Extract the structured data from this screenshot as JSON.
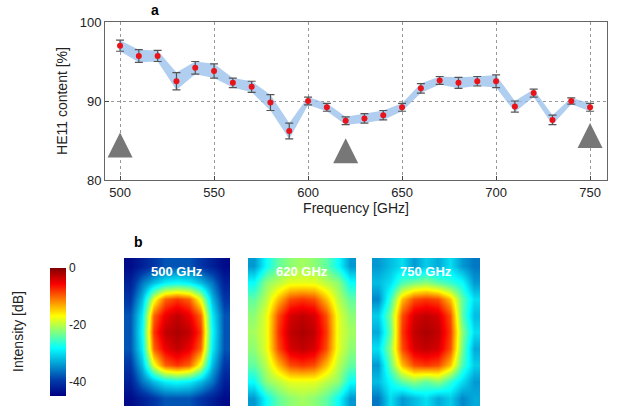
{
  "chart_data": [
    {
      "panel": "a",
      "type": "scatter",
      "x": [
        500,
        510,
        520,
        530,
        540,
        550,
        560,
        570,
        580,
        590,
        600,
        610,
        620,
        630,
        640,
        650,
        660,
        670,
        680,
        690,
        700,
        710,
        720,
        730,
        740,
        750
      ],
      "values": [
        97,
        95.7,
        95.7,
        92.5,
        94.2,
        93.8,
        92.3,
        91.8,
        89.8,
        86.2,
        90,
        89.2,
        87.5,
        87.8,
        88.2,
        89.2,
        91.6,
        92.6,
        92.3,
        92.5,
        92.5,
        89.3,
        91,
        87.6,
        90,
        89.2
      ],
      "errors": [
        0.7,
        0.8,
        0.7,
        1.1,
        0.8,
        0.9,
        0.6,
        0.7,
        1.0,
        1.0,
        0.5,
        0.5,
        0.5,
        0.6,
        0.6,
        0.5,
        0.6,
        0.5,
        0.7,
        0.6,
        0.8,
        0.7,
        0.5,
        0.6,
        0.4,
        0.5
      ],
      "xlabel": "Frequency [GHz]",
      "ylabel": "HE11 content [%]",
      "xlim": [
        492,
        759
      ],
      "ylim": [
        80,
        100
      ],
      "xticks": [
        500,
        550,
        600,
        650,
        700,
        750
      ],
      "yticks": [
        80,
        90,
        100
      ],
      "grid": true,
      "color": "#e8141a",
      "marker": "circle",
      "arrows": [
        {
          "x": 500,
          "y": 86
        },
        {
          "x": 620,
          "y": 85.3
        },
        {
          "x": 750,
          "y": 87.2
        }
      ]
    },
    {
      "panel": "b",
      "type": "heatmap",
      "tick_labels": false,
      "colorbar": {
        "title": "Intensity [dB]",
        "range": [
          -45,
          0
        ],
        "ticks": [
          0,
          -20,
          -40
        ]
      },
      "panels": [
        {
          "title": "500 GHz",
          "cells": [
            [
              -44,
              -42,
              -40,
              -38,
              -38,
              -38,
              -40,
              -42,
              -44
            ],
            [
              -42,
              -36,
              -32,
              -29,
              -28,
              -29,
              -32,
              -36,
              -42
            ],
            [
              -40,
              -32,
              -18,
              -10,
              -8,
              -10,
              -18,
              -32,
              -40
            ],
            [
              -38,
              -29,
              -10,
              -5,
              -3,
              -5,
              -10,
              -29,
              -38
            ],
            [
              -38,
              -28,
              -8,
              -3,
              -2,
              -3,
              -8,
              -28,
              -38
            ],
            [
              -38,
              -29,
              -10,
              -5,
              -3,
              -5,
              -10,
              -29,
              -38
            ],
            [
              -40,
              -32,
              -18,
              -10,
              -8,
              -10,
              -18,
              -32,
              -40
            ],
            [
              -42,
              -36,
              -32,
              -29,
              -28,
              -29,
              -32,
              -36,
              -42
            ],
            [
              -44,
              -42,
              -40,
              -38,
              -38,
              -38,
              -40,
              -42,
              -44
            ]
          ]
        },
        {
          "title": "620 GHz",
          "cells": [
            [
              -34,
              -28,
              -24,
              -22,
              -21,
              -22,
              -24,
              -28,
              -34
            ],
            [
              -28,
              -22,
              -20,
              -18,
              -18,
              -18,
              -20,
              -22,
              -28
            ],
            [
              -24,
              -20,
              -14,
              -9,
              -8,
              -9,
              -14,
              -20,
              -24
            ],
            [
              -22,
              -18,
              -9,
              -4,
              -3,
              -4,
              -9,
              -18,
              -22
            ],
            [
              -21,
              -18,
              -8,
              -3,
              -2,
              -3,
              -8,
              -18,
              -21
            ],
            [
              -22,
              -18,
              -9,
              -4,
              -3,
              -4,
              -9,
              -18,
              -22
            ],
            [
              -24,
              -20,
              -14,
              -9,
              -8,
              -9,
              -14,
              -20,
              -24
            ],
            [
              -28,
              -22,
              -20,
              -18,
              -18,
              -18,
              -20,
              -22,
              -28
            ],
            [
              -34,
              -28,
              -24,
              -22,
              -21,
              -22,
              -24,
              -28,
              -34
            ]
          ]
        },
        {
          "title": "750 GHz",
          "cells": [
            [
              -36,
              -30,
              -34,
              -32,
              -30,
              -33,
              -31,
              -35,
              -33
            ],
            [
              -32,
              -28,
              -24,
              -22,
              -24,
              -22,
              -26,
              -30,
              -34
            ],
            [
              -34,
              -24,
              -14,
              -9,
              -8,
              -9,
              -14,
              -25,
              -31
            ],
            [
              -30,
              -22,
              -9,
              -4,
              -3,
              -4,
              -9,
              -23,
              -33
            ],
            [
              -33,
              -24,
              -8,
              -3,
              -2,
              -3,
              -8,
              -22,
              -30
            ],
            [
              -31,
              -23,
              -9,
              -4,
              -3,
              -4,
              -9,
              -24,
              -32
            ],
            [
              -35,
              -26,
              -14,
              -9,
              -8,
              -9,
              -14,
              -24,
              -30
            ],
            [
              -32,
              -30,
              -25,
              -23,
              -22,
              -24,
              -26,
              -28,
              -34
            ],
            [
              -34,
              -32,
              -30,
              -34,
              -31,
              -33,
              -30,
              -34,
              -36
            ]
          ]
        }
      ]
    }
  ]
}
